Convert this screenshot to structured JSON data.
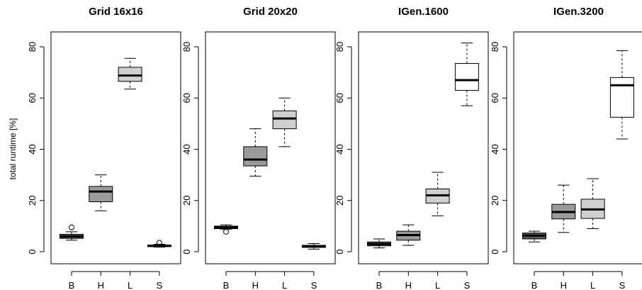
{
  "chart_data": {
    "type": "boxplot",
    "ylabel": "total runtime [%]",
    "categories": [
      "B",
      "H",
      "L",
      "S"
    ],
    "ylim": [
      0,
      80
    ],
    "yticks": [
      0,
      20,
      40,
      60,
      80
    ],
    "colors": {
      "B": "#5a5a5a",
      "H": "#9b9b9b",
      "L": "#cfcfcf",
      "S": "#ffffff"
    },
    "panels": [
      {
        "title": "Grid 16x16",
        "boxes": [
          {
            "category": "B",
            "min": 4.5,
            "q1": 5.2,
            "median": 6.0,
            "q3": 6.8,
            "max": 7.8,
            "outliers": [
              9.5
            ]
          },
          {
            "category": "H",
            "min": 16.0,
            "q1": 19.5,
            "median": 23.5,
            "q3": 25.5,
            "max": 30.0,
            "outliers": []
          },
          {
            "category": "L",
            "min": 63.5,
            "q1": 66.5,
            "median": 68.8,
            "q3": 72.0,
            "max": 75.5,
            "outliers": []
          },
          {
            "category": "S",
            "min": 1.8,
            "q1": 2.0,
            "median": 2.3,
            "q3": 2.6,
            "max": 2.9,
            "outliers": [
              3.5
            ]
          }
        ]
      },
      {
        "title": "Grid 20x20",
        "boxes": [
          {
            "category": "B",
            "min": 8.8,
            "q1": 9.0,
            "median": 9.5,
            "q3": 10.0,
            "max": 10.5,
            "outliers": [
              7.8
            ]
          },
          {
            "category": "H",
            "min": 29.5,
            "q1": 33.5,
            "median": 36.0,
            "q3": 41.0,
            "max": 48.0,
            "outliers": []
          },
          {
            "category": "L",
            "min": 41.0,
            "q1": 48.0,
            "median": 52.0,
            "q3": 55.0,
            "max": 60.0,
            "outliers": []
          },
          {
            "category": "S",
            "min": 1.0,
            "q1": 1.7,
            "median": 2.0,
            "q3": 2.5,
            "max": 3.2,
            "outliers": []
          }
        ]
      },
      {
        "title": "IGen.1600",
        "boxes": [
          {
            "category": "B",
            "min": 1.5,
            "q1": 2.3,
            "median": 3.0,
            "q3": 3.8,
            "max": 5.0,
            "outliers": []
          },
          {
            "category": "H",
            "min": 2.5,
            "q1": 4.5,
            "median": 6.5,
            "q3": 8.0,
            "max": 10.5,
            "outliers": []
          },
          {
            "category": "L",
            "min": 14.0,
            "q1": 19.0,
            "median": 22.0,
            "q3": 24.5,
            "max": 31.0,
            "outliers": []
          },
          {
            "category": "S",
            "min": 57.0,
            "q1": 63.0,
            "median": 67.0,
            "q3": 73.5,
            "max": 81.5,
            "outliers": []
          }
        ]
      },
      {
        "title": "IGen.3200",
        "boxes": [
          {
            "category": "B",
            "min": 3.8,
            "q1": 5.0,
            "median": 6.3,
            "q3": 7.3,
            "max": 8.0,
            "outliers": []
          },
          {
            "category": "H",
            "min": 7.5,
            "q1": 12.8,
            "median": 15.5,
            "q3": 18.5,
            "max": 26.0,
            "outliers": []
          },
          {
            "category": "L",
            "min": 9.0,
            "q1": 13.0,
            "median": 16.5,
            "q3": 20.5,
            "max": 28.5,
            "outliers": []
          },
          {
            "category": "S",
            "min": 44.0,
            "q1": 52.5,
            "median": 65.0,
            "q3": 68.0,
            "max": 78.5,
            "outliers": []
          }
        ]
      }
    ]
  }
}
